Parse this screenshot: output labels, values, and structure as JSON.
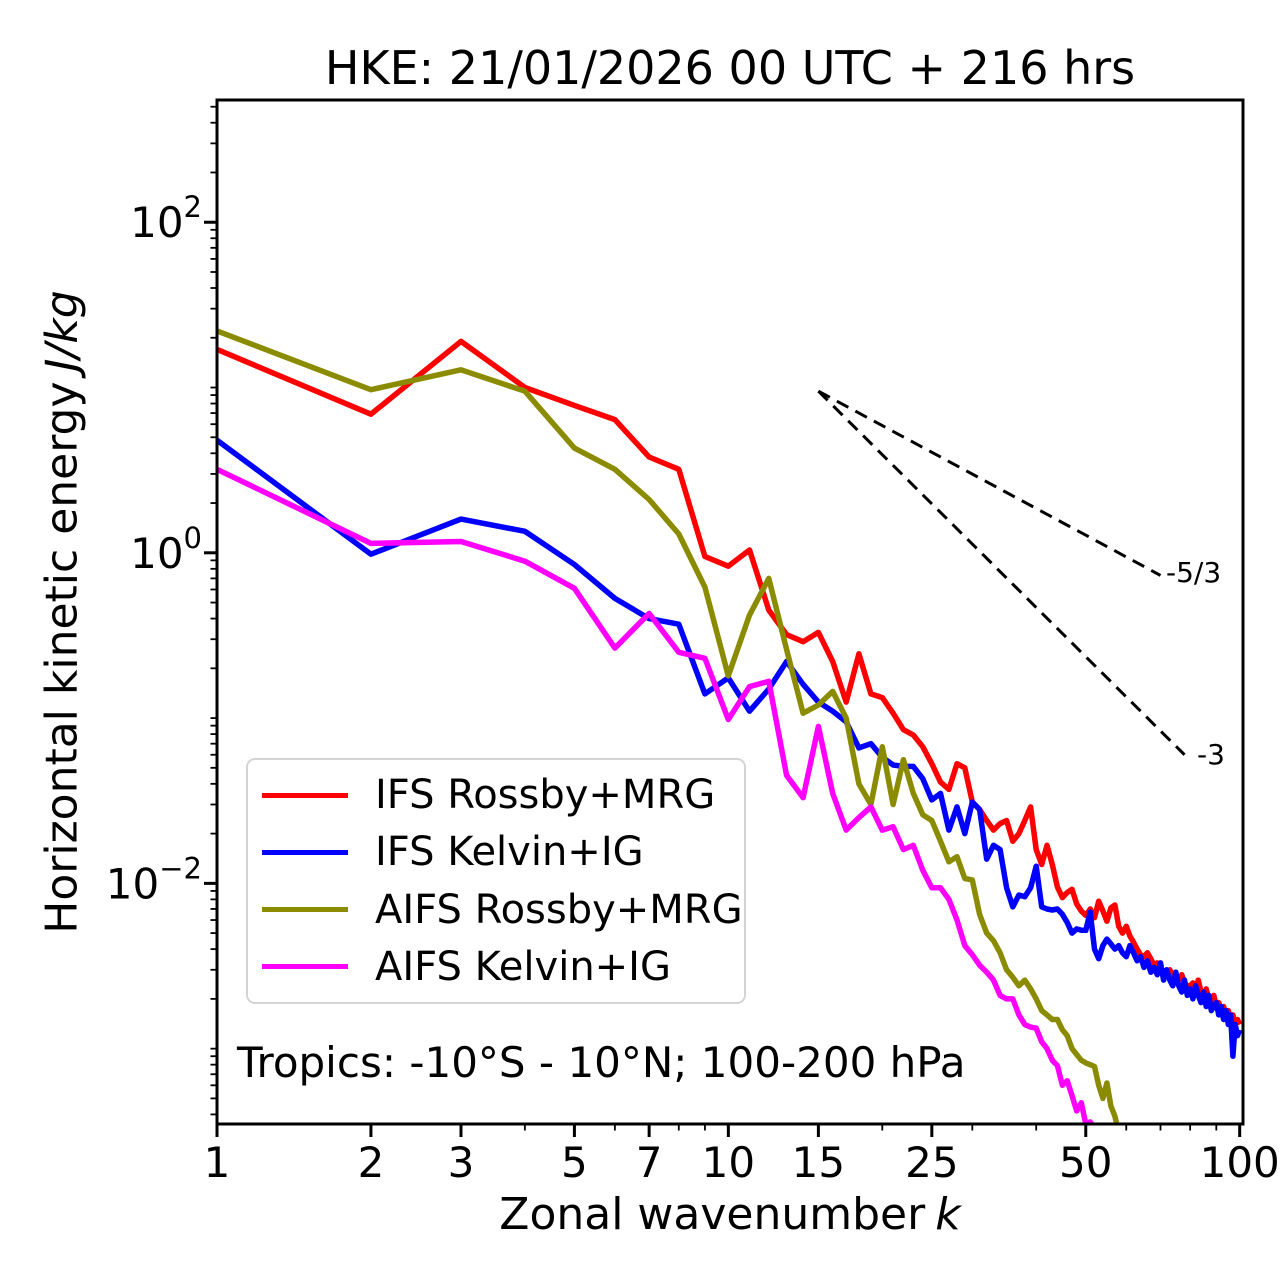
{
  "title": "HKE: 21/01/2026 00 UTC + 216 hrs",
  "annotation": "Tropics: -10°S - 10°N; 100-200 hPa",
  "x_axis": {
    "label_text": "Zonal wavenumber",
    "label_symbol": "k",
    "scale": "log",
    "range": [
      1,
      101.5
    ],
    "major_ticks": [
      {
        "value": 1,
        "label": "1"
      },
      {
        "value": 2,
        "label": "2"
      },
      {
        "value": 3,
        "label": "3"
      },
      {
        "value": 5,
        "label": "5"
      },
      {
        "value": 7,
        "label": "7"
      },
      {
        "value": 10,
        "label": "10"
      },
      {
        "value": 15,
        "label": "15"
      },
      {
        "value": 25,
        "label": "25"
      },
      {
        "value": 50,
        "label": "50"
      },
      {
        "value": 100,
        "label": "100"
      }
    ],
    "minor_ticks": [
      4,
      6,
      8,
      9,
      20,
      30,
      40,
      60,
      70,
      80,
      90
    ]
  },
  "y_axis": {
    "label_text": "Horizontal kinetic energy",
    "label_symbol": "J/kg",
    "scale": "log",
    "range": [
      0.00035,
      549
    ],
    "major_ticks": [
      {
        "value": 100,
        "base": "10",
        "exponent": "2"
      },
      {
        "value": 1,
        "base": "10",
        "exponent": "0"
      },
      {
        "value": 0.01,
        "base": "10",
        "exponent": "−2"
      }
    ],
    "unlabeled_decades": [
      10,
      0.1,
      0.001
    ]
  },
  "legend": {
    "entries": [
      {
        "label": "IFS Rossby+MRG",
        "color": "#ff0000"
      },
      {
        "label": "IFS Kelvin+IG",
        "color": "#0000ff"
      },
      {
        "label": "AIFS Rossby+MRG",
        "color": "#8b8b00"
      },
      {
        "label": "AIFS Kelvin+IG",
        "color": "#ff00ff"
      }
    ]
  },
  "reference_lines": [
    {
      "label": "-5/3",
      "slope": -1.667,
      "x": [
        15,
        70
      ],
      "y": [
        9.5,
        0.73
      ]
    },
    {
      "label": "-3",
      "slope": -3,
      "x": [
        15,
        78
      ],
      "y": [
        9.5,
        0.06
      ]
    }
  ],
  "chart_data": {
    "type": "line",
    "title": "HKE: 21/01/2026 00 UTC + 216 hrs",
    "xlabel": "Zonal wavenumber k",
    "ylabel": "Horizontal kinetic energy J/kg",
    "x_scale": "log",
    "y_scale": "log",
    "xlim": [
      1,
      101.5
    ],
    "ylim": [
      0.00035,
      549
    ],
    "grid": false,
    "legend_position": "lower left",
    "series": [
      {
        "name": "IFS Rossby+MRG",
        "color": "#ff0000",
        "k_start": 1,
        "values": [
          17.0,
          6.9,
          19.0,
          10.0,
          7.8,
          6.4,
          3.8,
          3.2,
          0.95,
          0.83,
          1.04,
          0.45,
          0.32,
          0.29,
          0.33,
          0.22,
          0.125,
          0.245,
          0.14,
          0.133,
          0.107,
          0.085,
          0.079,
          0.067,
          0.053,
          0.041,
          0.037,
          0.053,
          0.05,
          0.031,
          0.028,
          0.024,
          0.021,
          0.023,
          0.024,
          0.018,
          0.02,
          0.024,
          0.029,
          0.016,
          0.013,
          0.017,
          0.013,
          0.0095,
          0.0082,
          0.0088,
          0.0092,
          0.0075,
          0.0068,
          0.0064,
          0.007,
          0.0062,
          0.0078,
          0.0068,
          0.0059,
          0.0071,
          0.0074,
          0.0055,
          0.005,
          0.0055,
          0.0048,
          0.0044,
          0.004,
          0.0037,
          0.0036,
          0.0038,
          0.0035,
          0.0032,
          0.0033,
          0.0031,
          0.0029,
          0.0028,
          0.003,
          0.0028,
          0.0027,
          0.0026,
          0.0028,
          0.0025,
          0.0024,
          0.0024,
          0.0025,
          0.0023,
          0.0026,
          0.0022,
          0.0021,
          0.0023,
          0.002,
          0.0019,
          0.0021,
          0.0018,
          0.0019,
          0.0017,
          0.0018,
          0.0016,
          0.0017,
          0.0015,
          0.0016,
          0.0014,
          0.0015,
          0.0014
        ]
      },
      {
        "name": "IFS Kelvin+IG",
        "color": "#0000ff",
        "k_start": 1,
        "values": [
          4.8,
          0.98,
          1.6,
          1.35,
          0.85,
          0.53,
          0.4,
          0.37,
          0.14,
          0.175,
          0.11,
          0.15,
          0.22,
          0.16,
          0.125,
          0.11,
          0.095,
          0.066,
          0.07,
          0.058,
          0.052,
          0.051,
          0.051,
          0.043,
          0.032,
          0.035,
          0.021,
          0.029,
          0.02,
          0.031,
          0.028,
          0.014,
          0.017,
          0.016,
          0.0094,
          0.0072,
          0.0085,
          0.0083,
          0.0094,
          0.0127,
          0.0072,
          0.007,
          0.0069,
          0.007,
          0.0065,
          0.0058,
          0.005,
          0.0053,
          0.0052,
          0.0052,
          0.0067,
          0.004,
          0.0035,
          0.0042,
          0.0046,
          0.0043,
          0.004,
          0.0042,
          0.0038,
          0.0036,
          0.0042,
          0.0038,
          0.0034,
          0.0036,
          0.0031,
          0.0034,
          0.0029,
          0.0031,
          0.0028,
          0.0033,
          0.0026,
          0.003,
          0.0026,
          0.0024,
          0.0029,
          0.0024,
          0.0022,
          0.0026,
          0.0021,
          0.0023,
          0.002,
          0.0024,
          0.0021,
          0.0019,
          0.0022,
          0.0018,
          0.0021,
          0.0017,
          0.0018,
          0.0019,
          0.0016,
          0.0018,
          0.0015,
          0.0017,
          0.0014,
          0.0016,
          0.0009,
          0.0014,
          0.0012,
          0.0013
        ]
      },
      {
        "name": "AIFS Rossby+MRG",
        "color": "#8b8b00",
        "k_start": 1,
        "values": [
          22.0,
          9.7,
          12.8,
          9.5,
          4.3,
          3.2,
          2.1,
          1.3,
          0.62,
          0.18,
          0.42,
          0.7,
          0.26,
          0.107,
          0.12,
          0.145,
          0.1,
          0.04,
          0.03,
          0.067,
          0.03,
          0.056,
          0.035,
          0.026,
          0.024,
          0.018,
          0.0135,
          0.0145,
          0.0107,
          0.0105,
          0.0065,
          0.005,
          0.0045,
          0.0038,
          0.003,
          0.0027,
          0.0024,
          0.0026,
          0.0023,
          0.002,
          0.0017,
          0.0016,
          0.0015,
          0.0015,
          0.0013,
          0.0012,
          0.001,
          0.00092,
          0.00085,
          0.00082,
          0.0008,
          0.00078,
          0.0006,
          0.0005,
          0.00062,
          0.00045,
          0.00039,
          0.00031
        ]
      },
      {
        "name": "AIFS Kelvin+IG",
        "color": "#ff00ff",
        "k_start": 1,
        "values": [
          3.2,
          1.14,
          1.17,
          0.89,
          0.61,
          0.265,
          0.43,
          0.25,
          0.23,
          0.098,
          0.155,
          0.167,
          0.045,
          0.033,
          0.089,
          0.035,
          0.021,
          0.025,
          0.029,
          0.021,
          0.022,
          0.016,
          0.017,
          0.012,
          0.0094,
          0.0094,
          0.008,
          0.006,
          0.0042,
          0.0037,
          0.0032,
          0.0029,
          0.0026,
          0.0021,
          0.002,
          0.002,
          0.0016,
          0.0014,
          0.00135,
          0.00133,
          0.0011,
          0.001,
          0.00085,
          0.00079,
          0.0006,
          0.00064,
          0.00052,
          0.00042,
          0.00047,
          0.00035,
          0.00036,
          0.00033,
          0.00028
        ]
      }
    ]
  }
}
